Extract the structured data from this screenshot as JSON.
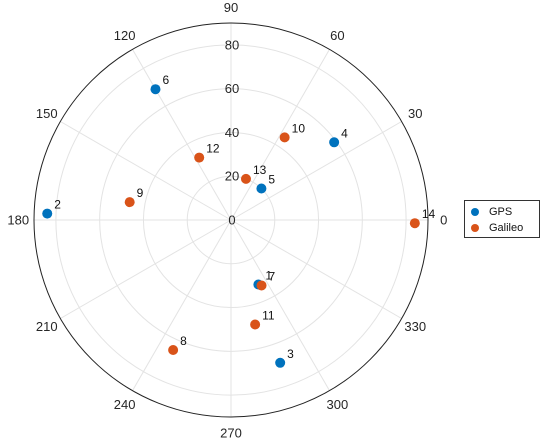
{
  "chart_data": {
    "type": "scatter",
    "projection": "polar",
    "angle_ticks": [
      "0",
      "30",
      "60",
      "90",
      "120",
      "150",
      "180",
      "210",
      "240",
      "270",
      "300",
      "330"
    ],
    "radial_ticks": [
      "0",
      "20",
      "40",
      "60",
      "80"
    ],
    "radial_axis_values": [
      0,
      20,
      40,
      60,
      80
    ],
    "rlim": [
      0,
      90
    ],
    "grid": true,
    "legend_position": "right",
    "series": [
      {
        "name": "GPS",
        "color": "#0072BD",
        "points": [
          {
            "label": "1",
            "angle": 293,
            "r": 32
          },
          {
            "label": "2",
            "angle": 178,
            "r": 84
          },
          {
            "label": "3",
            "angle": 289,
            "r": 69
          },
          {
            "label": "4",
            "angle": 37,
            "r": 59
          },
          {
            "label": "5",
            "angle": 46,
            "r": 20
          },
          {
            "label": "6",
            "angle": 120,
            "r": 69
          }
        ]
      },
      {
        "name": "Galileo",
        "color": "#D95319",
        "points": [
          {
            "label": "7",
            "angle": 295,
            "r": 33
          },
          {
            "label": "8",
            "angle": 246,
            "r": 65
          },
          {
            "label": "9",
            "angle": 170,
            "r": 47
          },
          {
            "label": "10",
            "angle": 57,
            "r": 45
          },
          {
            "label": "11",
            "angle": 283,
            "r": 49
          },
          {
            "label": "12",
            "angle": 117,
            "r": 32
          },
          {
            "label": "13",
            "angle": 70,
            "r": 20
          },
          {
            "label": "14",
            "angle": 359,
            "r": 84
          }
        ]
      }
    ]
  }
}
